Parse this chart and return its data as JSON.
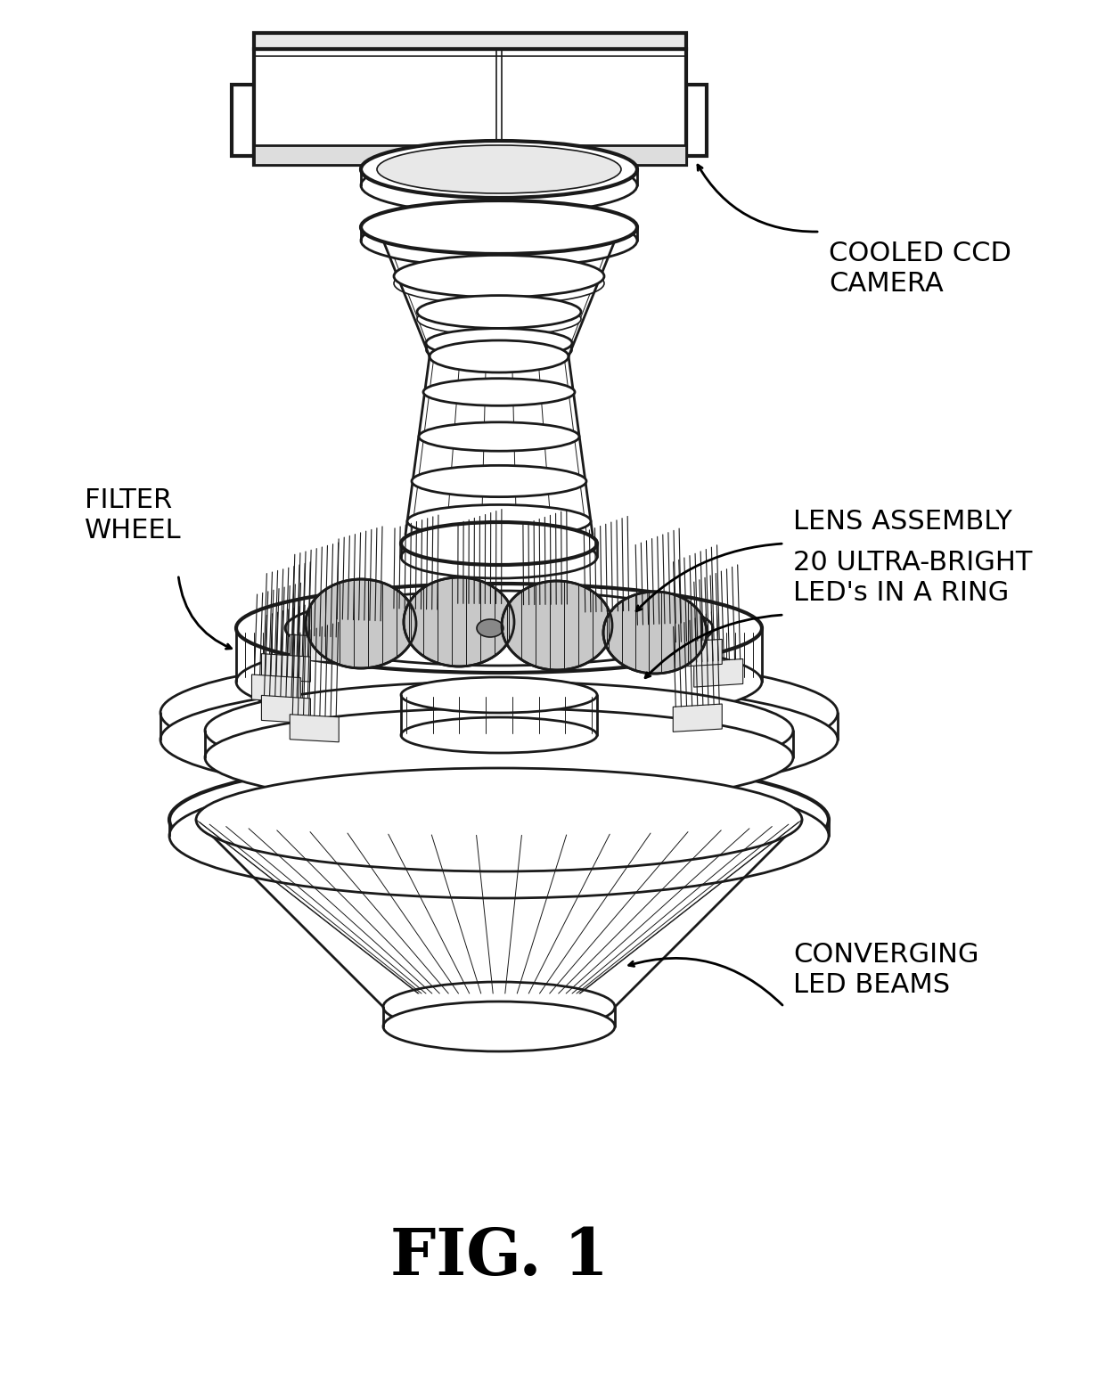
{
  "figure_label": "FIG. 1",
  "background_color": "#ffffff",
  "line_color": "#1a1a1a",
  "figsize": [
    12.4,
    15.6
  ],
  "dpi": 100,
  "labels": {
    "cooled_ccd_camera": "COOLED CCD\nCAMERA",
    "filter_wheel": "FILTER\nWHEEL",
    "lens_assembly": "LENS ASSEMBLY",
    "leds": "20 ULTRA-BRIGHT\nLED's IN A RING",
    "converging": "CONVERGING\nLED BEAMS"
  }
}
